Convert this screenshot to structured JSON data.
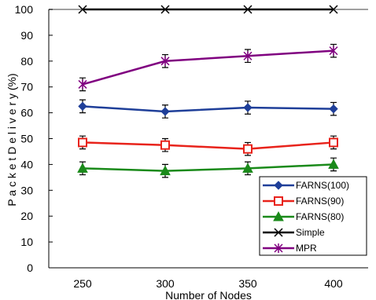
{
  "chart_data": {
    "type": "line",
    "title": "",
    "xlabel": "Number of Nodes",
    "ylabel": "P a c k e t   D e l i v e r y   (%)",
    "ylim": [
      0,
      100
    ],
    "yticks": [
      0,
      10,
      20,
      30,
      40,
      50,
      60,
      70,
      80,
      90,
      100
    ],
    "categories": [
      "250",
      "300",
      "350",
      "400"
    ],
    "series": [
      {
        "name": "FARNS(100)",
        "color": "#1f3f99",
        "marker": "diamond",
        "values": [
          62.5,
          60.5,
          62,
          61.5
        ],
        "errors": [
          2.5,
          2.5,
          2.5,
          2.5
        ]
      },
      {
        "name": "FARNS(90)",
        "color": "#e8231b",
        "marker": "square",
        "values": [
          48.5,
          47.5,
          46,
          48.5
        ],
        "errors": [
          2.5,
          2.5,
          2.5,
          2.5
        ]
      },
      {
        "name": "FARNS(80)",
        "color": "#1a8a1a",
        "marker": "triangle",
        "values": [
          38.5,
          37.5,
          38.5,
          40
        ],
        "errors": [
          2.5,
          2.5,
          2.5,
          2.5
        ]
      },
      {
        "name": "Simple",
        "color": "#000000",
        "marker": "x",
        "values": [
          100,
          100,
          100,
          100
        ],
        "errors": [
          0,
          0,
          0,
          0
        ]
      },
      {
        "name": "MPR",
        "color": "#800080",
        "marker": "star",
        "values": [
          71,
          80,
          82,
          84
        ],
        "errors": [
          2.5,
          2.5,
          2.5,
          2.5
        ]
      }
    ],
    "grid": false,
    "legend_position": "bottom-right"
  }
}
